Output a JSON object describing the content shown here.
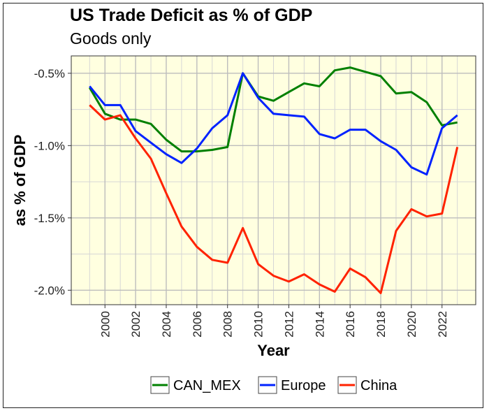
{
  "chart_data": {
    "type": "line",
    "title": "US Trade Deficit as % of GDP",
    "subtitle": "Goods only",
    "xlabel": "Year",
    "ylabel": "as % of GDP",
    "x": [
      1999,
      2000,
      2001,
      2002,
      2003,
      2004,
      2005,
      2006,
      2007,
      2008,
      2009,
      2010,
      2011,
      2012,
      2013,
      2014,
      2015,
      2016,
      2017,
      2018,
      2019,
      2020,
      2021,
      2022,
      2023
    ],
    "xticks": [
      2000,
      2002,
      2004,
      2006,
      2008,
      2010,
      2012,
      2014,
      2016,
      2018,
      2020,
      2022
    ],
    "xtick_labels": [
      "2000",
      "2002",
      "2004",
      "2006",
      "2008",
      "2010",
      "2012",
      "2014",
      "2016",
      "2018",
      "2020",
      "2022"
    ],
    "yticks": [
      -2.0,
      -1.5,
      -1.0,
      -0.5
    ],
    "ytick_labels": [
      "-2.0%",
      "-1.5%",
      "-1.0%",
      "-0.5%"
    ],
    "xlim": [
      1997.8,
      2024.2
    ],
    "ylim": [
      -2.1,
      -0.38
    ],
    "grid": true,
    "legend_position": "bottom",
    "series": [
      {
        "name": "CAN_MEX",
        "color": "#008000",
        "values": [
          -0.6,
          -0.78,
          -0.82,
          -0.82,
          -0.85,
          -0.96,
          -1.04,
          -1.04,
          -1.03,
          -1.01,
          -0.5,
          -0.66,
          -0.69,
          -0.63,
          -0.57,
          -0.59,
          -0.48,
          -0.46,
          -0.49,
          -0.52,
          -0.64,
          -0.63,
          -0.7,
          -0.86,
          -0.84
        ]
      },
      {
        "name": "Europe",
        "color": "#0022ff",
        "values": [
          -0.59,
          -0.72,
          -0.72,
          -0.9,
          -0.98,
          -1.06,
          -1.12,
          -1.02,
          -0.88,
          -0.79,
          -0.5,
          -0.67,
          -0.78,
          -0.79,
          -0.8,
          -0.92,
          -0.95,
          -0.89,
          -0.89,
          -0.97,
          -1.03,
          -1.15,
          -1.2,
          -0.88,
          -0.79
        ]
      },
      {
        "name": "China",
        "color": "#ff2200",
        "values": [
          -0.72,
          -0.82,
          -0.79,
          -0.95,
          -1.09,
          -1.33,
          -1.56,
          -1.7,
          -1.79,
          -1.81,
          -1.57,
          -1.82,
          -1.9,
          -1.94,
          -1.89,
          -1.96,
          -2.01,
          -1.85,
          -1.91,
          -2.02,
          -1.59,
          -1.44,
          -1.49,
          -1.47,
          -1.01
        ]
      }
    ]
  }
}
